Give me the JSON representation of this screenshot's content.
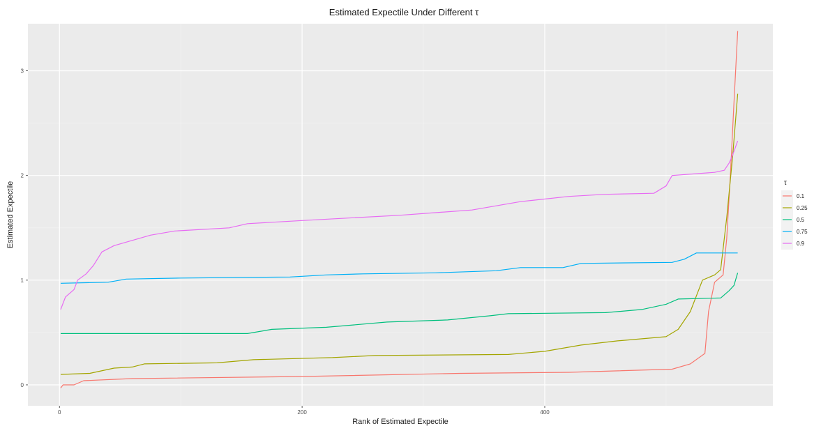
{
  "chart_data": {
    "type": "line",
    "title": "Estimated Expectile Under Different τ",
    "xlabel": "Rank of Estimated Expectile",
    "ylabel": "Estimated Expectile",
    "xlim": [
      -26,
      588
    ],
    "ylim": [
      -0.2,
      3.45
    ],
    "x_ticks": [
      0,
      200,
      400
    ],
    "y_ticks": [
      0,
      1,
      2,
      3
    ],
    "grid": true,
    "legend": {
      "title": "τ",
      "position": "right"
    },
    "series": [
      {
        "name": "0.1",
        "color": "#F8766D",
        "points": [
          [
            1,
            -0.03
          ],
          [
            3,
            0.0
          ],
          [
            12,
            0.0
          ],
          [
            20,
            0.04
          ],
          [
            60,
            0.06
          ],
          [
            200,
            0.08
          ],
          [
            330,
            0.11
          ],
          [
            420,
            0.12
          ],
          [
            505,
            0.15
          ],
          [
            520,
            0.2
          ],
          [
            532,
            0.3
          ],
          [
            535,
            0.7
          ],
          [
            540,
            0.98
          ],
          [
            547,
            1.05
          ],
          [
            550,
            1.4
          ],
          [
            553,
            2.0
          ],
          [
            556,
            2.7
          ],
          [
            559,
            3.38
          ]
        ]
      },
      {
        "name": "0.25",
        "color": "#A3A500",
        "points": [
          [
            1,
            0.1
          ],
          [
            25,
            0.11
          ],
          [
            45,
            0.16
          ],
          [
            60,
            0.17
          ],
          [
            70,
            0.2
          ],
          [
            130,
            0.21
          ],
          [
            160,
            0.24
          ],
          [
            225,
            0.26
          ],
          [
            260,
            0.28
          ],
          [
            370,
            0.29
          ],
          [
            400,
            0.32
          ],
          [
            430,
            0.38
          ],
          [
            460,
            0.42
          ],
          [
            500,
            0.46
          ],
          [
            510,
            0.53
          ],
          [
            520,
            0.7
          ],
          [
            530,
            1.0
          ],
          [
            540,
            1.05
          ],
          [
            545,
            1.1
          ],
          [
            550,
            1.6
          ],
          [
            555,
            2.2
          ],
          [
            559,
            2.78
          ]
        ]
      },
      {
        "name": "0.5",
        "color": "#00BF7D",
        "points": [
          [
            1,
            0.49
          ],
          [
            155,
            0.49
          ],
          [
            175,
            0.53
          ],
          [
            220,
            0.55
          ],
          [
            270,
            0.6
          ],
          [
            320,
            0.62
          ],
          [
            355,
            0.66
          ],
          [
            370,
            0.68
          ],
          [
            450,
            0.69
          ],
          [
            480,
            0.72
          ],
          [
            500,
            0.77
          ],
          [
            510,
            0.82
          ],
          [
            545,
            0.83
          ],
          [
            552,
            0.9
          ],
          [
            556,
            0.95
          ],
          [
            559,
            1.07
          ]
        ]
      },
      {
        "name": "0.75",
        "color": "#00B0F6",
        "points": [
          [
            1,
            0.97
          ],
          [
            40,
            0.98
          ],
          [
            55,
            1.01
          ],
          [
            100,
            1.02
          ],
          [
            190,
            1.03
          ],
          [
            220,
            1.05
          ],
          [
            250,
            1.06
          ],
          [
            310,
            1.07
          ],
          [
            360,
            1.09
          ],
          [
            380,
            1.12
          ],
          [
            415,
            1.12
          ],
          [
            430,
            1.16
          ],
          [
            505,
            1.17
          ],
          [
            515,
            1.2
          ],
          [
            525,
            1.26
          ],
          [
            559,
            1.26
          ]
        ]
      },
      {
        "name": "0.9",
        "color": "#E76BF3",
        "points": [
          [
            1,
            0.72
          ],
          [
            5,
            0.84
          ],
          [
            12,
            0.91
          ],
          [
            15,
            1.0
          ],
          [
            22,
            1.06
          ],
          [
            28,
            1.14
          ],
          [
            35,
            1.27
          ],
          [
            45,
            1.33
          ],
          [
            60,
            1.38
          ],
          [
            75,
            1.43
          ],
          [
            95,
            1.47
          ],
          [
            140,
            1.5
          ],
          [
            155,
            1.54
          ],
          [
            200,
            1.57
          ],
          [
            280,
            1.62
          ],
          [
            340,
            1.67
          ],
          [
            380,
            1.75
          ],
          [
            420,
            1.8
          ],
          [
            450,
            1.82
          ],
          [
            490,
            1.83
          ],
          [
            500,
            1.9
          ],
          [
            505,
            2.0
          ],
          [
            540,
            2.03
          ],
          [
            548,
            2.05
          ],
          [
            552,
            2.12
          ],
          [
            555,
            2.2
          ],
          [
            559,
            2.33
          ]
        ]
      }
    ]
  }
}
